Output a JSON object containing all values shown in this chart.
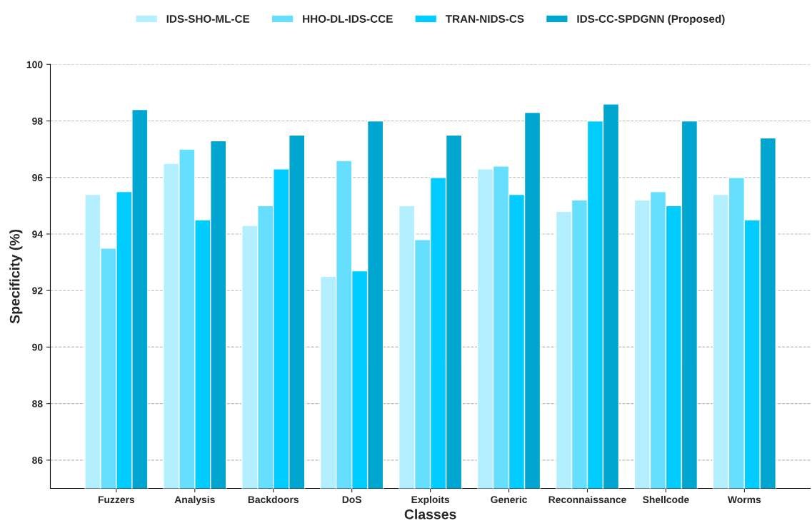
{
  "chart_data": {
    "type": "bar",
    "xlabel": "Classes",
    "ylabel": "Specificity (%)",
    "categories": [
      "Fuzzers",
      "Analysis",
      "Backdoors",
      "DoS",
      "Exploits",
      "Generic",
      "Reconnaissance",
      "Shellcode",
      "Worms"
    ],
    "series": [
      {
        "name": "IDS-SHO-ML-CE",
        "color": "#b3efff",
        "values": [
          95.4,
          96.5,
          94.3,
          92.5,
          95.0,
          96.3,
          94.8,
          95.2,
          95.4
        ]
      },
      {
        "name": "HHO-DL-IDS-CCE",
        "color": "#66dfff",
        "values": [
          93.5,
          97.0,
          95.0,
          96.6,
          93.8,
          96.4,
          95.2,
          95.5,
          96.0
        ]
      },
      {
        "name": "TRAN-NIDS-CS",
        "color": "#00ccff",
        "values": [
          95.5,
          94.5,
          96.3,
          92.7,
          96.0,
          95.4,
          98.0,
          95.0,
          94.5
        ]
      },
      {
        "name": "IDS-CC-SPDGNN (Proposed)",
        "color": "#00a5d0",
        "values": [
          98.4,
          97.3,
          97.5,
          98.0,
          97.5,
          98.3,
          98.6,
          98.0,
          97.4
        ]
      }
    ],
    "ylim": [
      85,
      100
    ],
    "yticks": [
      86,
      88,
      90,
      92,
      94,
      96,
      98,
      100
    ],
    "grid": "y",
    "legend": "top"
  }
}
